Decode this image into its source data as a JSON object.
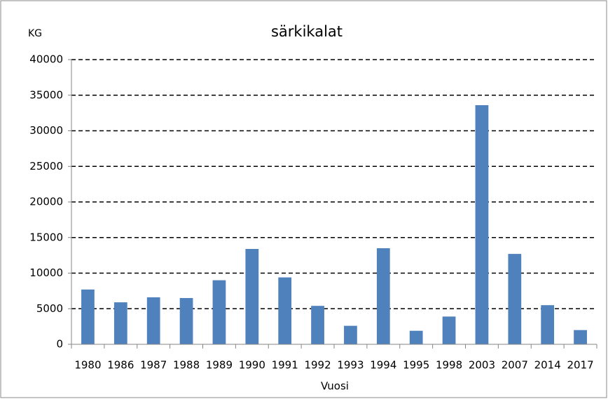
{
  "chart_data": {
    "type": "bar",
    "title": "särkikalat",
    "y_label": "KG",
    "x_label": "Vuosi",
    "categories": [
      "1980",
      "1986",
      "1987",
      "1988",
      "1989",
      "1990",
      "1991",
      "1992",
      "1993",
      "1994",
      "1995",
      "1998",
      "2003",
      "2007",
      "2014",
      "2017"
    ],
    "values": [
      7700,
      5900,
      6600,
      6500,
      9000,
      13400,
      9400,
      5400,
      2600,
      13500,
      1900,
      3900,
      33600,
      12700,
      5500,
      2000
    ],
    "color": "#4f81bd",
    "ylim": [
      0,
      40000
    ],
    "yticks": [
      0,
      5000,
      10000,
      15000,
      20000,
      25000,
      30000,
      35000,
      40000
    ],
    "grid": true
  }
}
